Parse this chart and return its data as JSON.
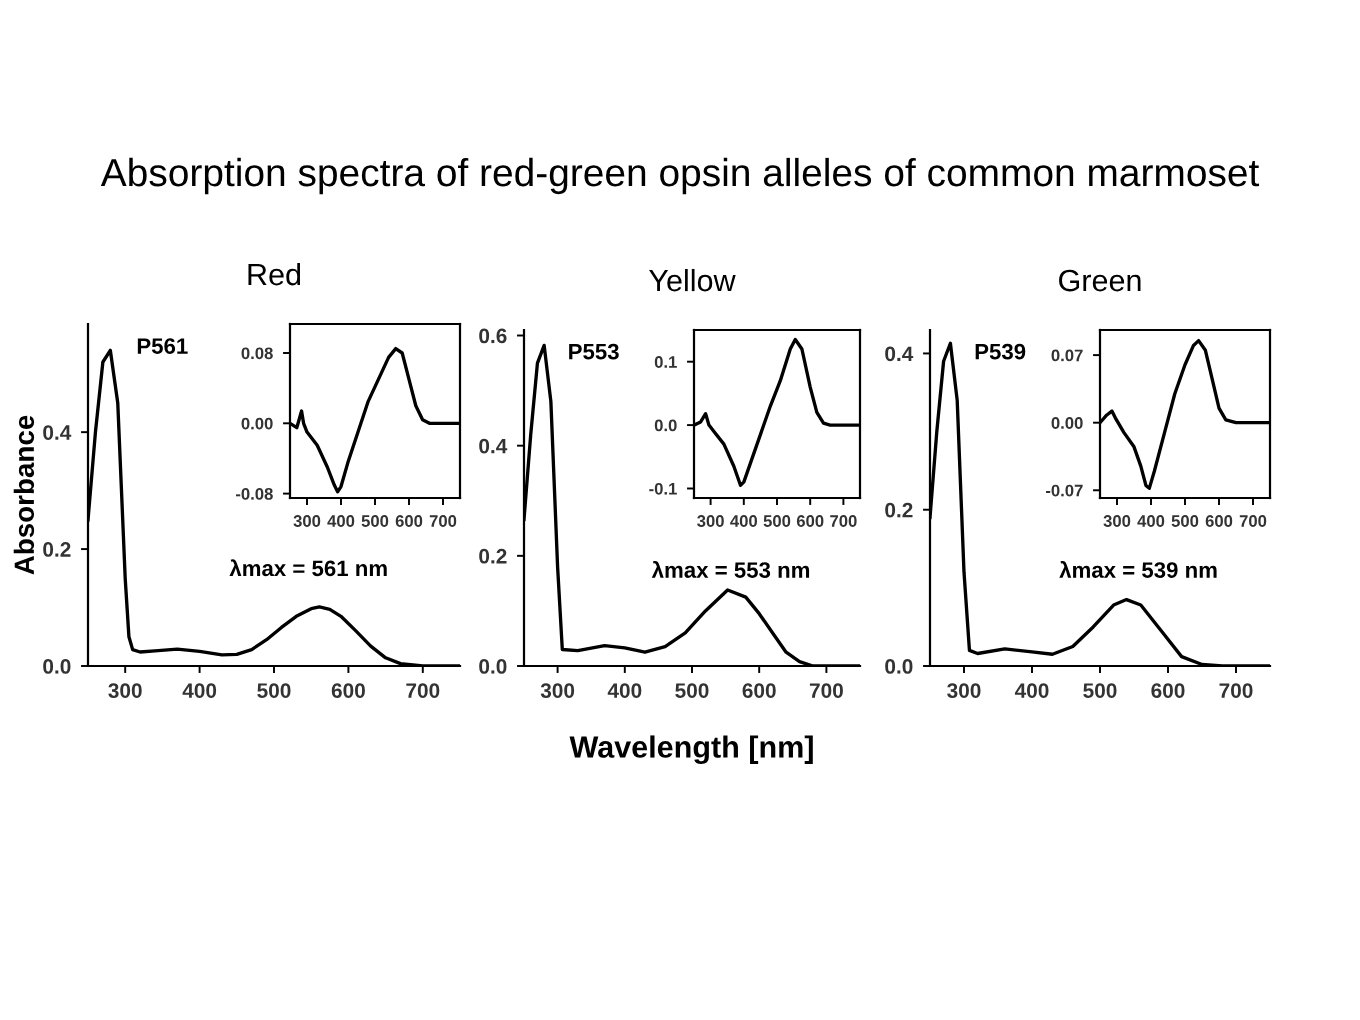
{
  "chart_data": [
    {
      "type": "line",
      "title": "Red",
      "ylabel": "Absorbance",
      "annotations": [
        "P561",
        "λmax = 561 nm",
        "Absorption spectra of red-green opsin alleles of common marmoset"
      ],
      "xlim": [
        250,
        750
      ],
      "ylim": [
        0,
        0.585
      ],
      "xticks": [
        300,
        400,
        500,
        600,
        700
      ],
      "yticks": [
        {
          "value": 0,
          "label": "0.0"
        },
        {
          "value": 0.2,
          "label": "0.2"
        },
        {
          "value": 0.4,
          "label": "0.4"
        }
      ],
      "grid": false,
      "legend": false,
      "series": [
        {
          "color": "#000000",
          "x": [
            250,
            260,
            270,
            280,
            290,
            300,
            305,
            310,
            320,
            340,
            370,
            400,
            430,
            450,
            470,
            490,
            510,
            530,
            550,
            561,
            575,
            590,
            610,
            630,
            650,
            670,
            700,
            750
          ],
          "values": [
            0.25,
            0.4,
            0.52,
            0.54,
            0.45,
            0.15,
            0.05,
            0.028,
            0.024,
            0.026,
            0.029,
            0.025,
            0.019,
            0.02,
            0.028,
            0.045,
            0.066,
            0.085,
            0.098,
            0.101,
            0.097,
            0.085,
            0.06,
            0.034,
            0.014,
            0.004,
            0,
            0
          ]
        }
      ]
    },
    {
      "type": "line",
      "xlim": [
        250,
        750
      ],
      "ylim": [
        -0.085,
        0.113
      ],
      "xticks": [
        300,
        400,
        500,
        600,
        700
      ],
      "yticks": [
        {
          "value": -0.08,
          "label": "-0.08"
        },
        {
          "value": 0,
          "label": "0.00"
        },
        {
          "value": 0.08,
          "label": "0.08"
        }
      ],
      "grid": false,
      "legend": false,
      "series": [
        {
          "color": "#000000",
          "x": [
            250,
            270,
            284,
            290,
            300,
            330,
            360,
            380,
            390,
            400,
            420,
            450,
            480,
            510,
            540,
            561,
            580,
            600,
            620,
            640,
            660,
            750
          ],
          "values": [
            0,
            -0.005,
            0.014,
            0.0,
            -0.01,
            -0.025,
            -0.05,
            -0.07,
            -0.078,
            -0.072,
            -0.045,
            -0.01,
            0.025,
            0.05,
            0.075,
            0.085,
            0.08,
            0.05,
            0.02,
            0.004,
            0,
            0
          ]
        }
      ]
    },
    {
      "type": "line",
      "title": "Yellow",
      "xlabel": "Wavelength [nm]",
      "annotations": [
        "P553",
        "λmax = 553 nm"
      ],
      "xlim": [
        250,
        750
      ],
      "ylim": [
        0,
        0.61
      ],
      "xticks": [
        300,
        400,
        500,
        600,
        700
      ],
      "yticks": [
        {
          "value": 0,
          "label": "0.0"
        },
        {
          "value": 0.2,
          "label": "0.2"
        },
        {
          "value": 0.4,
          "label": "0.4"
        },
        {
          "value": 0.6,
          "label": "0.6"
        }
      ],
      "grid": false,
      "legend": false,
      "series": [
        {
          "color": "#000000",
          "x": [
            250,
            260,
            270,
            280,
            290,
            300,
            307,
            330,
            370,
            400,
            430,
            460,
            490,
            520,
            553,
            580,
            600,
            620,
            640,
            660,
            680,
            750
          ],
          "values": [
            0.266,
            0.42,
            0.55,
            0.582,
            0.48,
            0.18,
            0.03,
            0.028,
            0.037,
            0.033,
            0.025,
            0.035,
            0.06,
            0.1,
            0.138,
            0.125,
            0.095,
            0.06,
            0.025,
            0.008,
            0,
            0
          ]
        }
      ]
    },
    {
      "type": "line",
      "xlim": [
        250,
        750
      ],
      "ylim": [
        -0.115,
        0.15
      ],
      "xticks": [
        300,
        400,
        500,
        600,
        700
      ],
      "yticks": [
        {
          "value": -0.1,
          "label": "-0.1"
        },
        {
          "value": 0,
          "label": "0.0"
        },
        {
          "value": 0.1,
          "label": "0.1"
        }
      ],
      "grid": false,
      "legend": false,
      "series": [
        {
          "color": "#000000",
          "x": [
            250,
            270,
            285,
            295,
            310,
            340,
            370,
            390,
            400,
            420,
            450,
            480,
            510,
            540,
            555,
            575,
            600,
            620,
            640,
            660,
            750
          ],
          "values": [
            0,
            0.005,
            0.018,
            0.0,
            -0.01,
            -0.03,
            -0.065,
            -0.095,
            -0.09,
            -0.06,
            -0.015,
            0.03,
            0.07,
            0.12,
            0.135,
            0.12,
            0.06,
            0.02,
            0.003,
            0,
            0
          ]
        }
      ]
    },
    {
      "type": "line",
      "title": "Green",
      "annotations": [
        "P539",
        "λmax = 539 nm"
      ],
      "xlim": [
        250,
        750
      ],
      "ylim": [
        0,
        0.43
      ],
      "xticks": [
        300,
        400,
        500,
        600,
        700
      ],
      "yticks": [
        {
          "value": 0,
          "label": "0.0"
        },
        {
          "value": 0.2,
          "label": "0.2"
        },
        {
          "value": 0.4,
          "label": "0.4"
        }
      ],
      "grid": false,
      "legend": false,
      "series": [
        {
          "color": "#000000",
          "x": [
            250,
            260,
            270,
            280,
            290,
            300,
            308,
            320,
            360,
            400,
            430,
            460,
            490,
            520,
            539,
            560,
            590,
            620,
            650,
            680,
            750
          ],
          "values": [
            0.19,
            0.3,
            0.39,
            0.413,
            0.34,
            0.12,
            0.02,
            0.016,
            0.022,
            0.018,
            0.015,
            0.025,
            0.05,
            0.078,
            0.085,
            0.078,
            0.045,
            0.012,
            0.002,
            0,
            0
          ]
        }
      ]
    },
    {
      "type": "line",
      "xlim": [
        250,
        750
      ],
      "ylim": [
        -0.078,
        0.096
      ],
      "xticks": [
        300,
        400,
        500,
        600,
        700
      ],
      "yticks": [
        {
          "value": -0.07,
          "label": "-0.07"
        },
        {
          "value": 0,
          "label": "0.00"
        },
        {
          "value": 0.07,
          "label": "0.07"
        }
      ],
      "grid": false,
      "legend": false,
      "series": [
        {
          "color": "#000000",
          "x": [
            250,
            270,
            285,
            295,
            320,
            350,
            370,
            385,
            395,
            410,
            440,
            470,
            500,
            525,
            540,
            560,
            580,
            600,
            620,
            650,
            750
          ],
          "values": [
            0,
            0.008,
            0.012,
            0.005,
            -0.01,
            -0.025,
            -0.045,
            -0.065,
            -0.068,
            -0.05,
            -0.01,
            0.03,
            0.06,
            0.08,
            0.085,
            0.075,
            0.045,
            0.015,
            0.003,
            0,
            0
          ]
        }
      ]
    }
  ]
}
